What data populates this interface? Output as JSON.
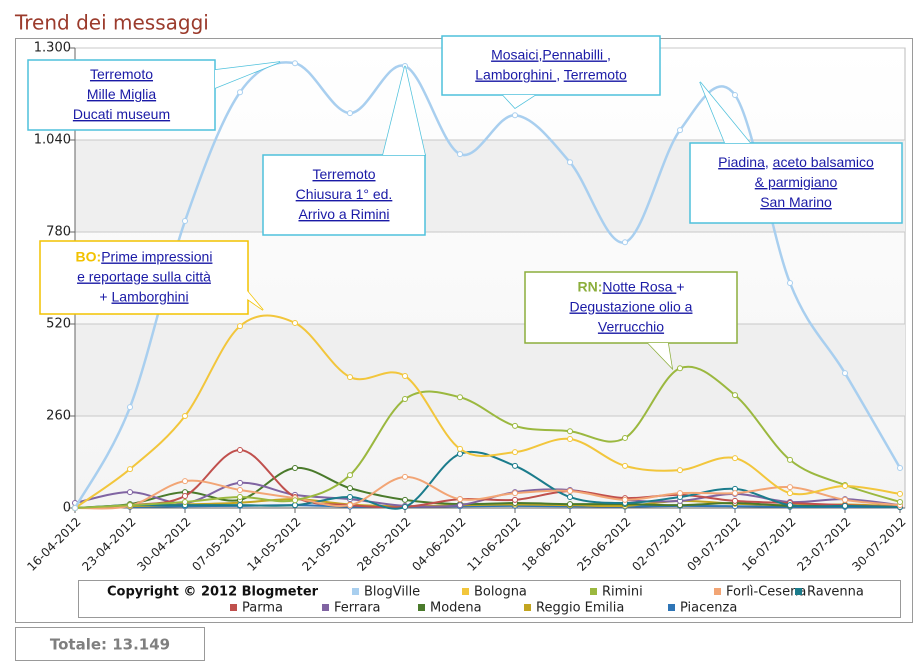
{
  "chart_data": {
    "type": "line",
    "title": "Trend dei messaggi",
    "categories": [
      "16-04-2012",
      "23-04-2012",
      "30-04-2012",
      "07-05-2012",
      "14-05-2012",
      "21-05-2012",
      "28-05-2012",
      "04-06-2012",
      "11-06-2012",
      "18-06-2012",
      "25-06-2012",
      "02-07-2012",
      "09-07-2012",
      "16-07-2012",
      "23-07-2012",
      "30-07-2012"
    ],
    "ylim": [
      0,
      1300
    ],
    "yticks": [
      0,
      260,
      520,
      780,
      {
        "value": 1040,
        "label": "1.040"
      },
      {
        "value": 1300,
        "label": "1.300"
      }
    ],
    "grid": true,
    "legend_title": "Copyright © 2012 Blogmeter",
    "series": [
      {
        "name": "BlogVille",
        "color": "#a9cfef",
        "values": [
          0,
          285,
          811,
          1175,
          1257,
          1116,
          1249,
          1000,
          1110,
          977,
          751,
          1068,
          1167,
          636,
          381,
          113
        ]
      },
      {
        "name": "Bologna",
        "color": "#f2c63c",
        "values": [
          0,
          110,
          260,
          514,
          523,
          370,
          373,
          167,
          158,
          195,
          119,
          107,
          141,
          42,
          62,
          40
        ]
      },
      {
        "name": "Rimini",
        "color": "#9bb83f",
        "values": [
          0,
          8,
          17,
          31,
          22,
          93,
          308,
          313,
          232,
          217,
          198,
          395,
          319,
          136,
          65,
          17
        ]
      },
      {
        "name": "Forlì-Cesena",
        "color": "#f2a575",
        "values": [
          0,
          6,
          76,
          51,
          28,
          8,
          88,
          25,
          42,
          48,
          23,
          42,
          42,
          59,
          23,
          8
        ]
      },
      {
        "name": "Ravenna",
        "color": "#1b7c8c",
        "values": [
          0,
          8,
          8,
          8,
          8,
          31,
          3,
          153,
          119,
          31,
          14,
          31,
          54,
          8,
          6,
          3
        ]
      },
      {
        "name": "Parma",
        "color": "#c0504d",
        "values": [
          0,
          8,
          34,
          164,
          31,
          8,
          3,
          25,
          23,
          48,
          28,
          37,
          20,
          14,
          8,
          3
        ]
      },
      {
        "name": "Ferrara",
        "color": "#8064a2",
        "values": [
          14,
          45,
          14,
          71,
          37,
          25,
          6,
          8,
          45,
          51,
          23,
          20,
          40,
          17,
          25,
          8
        ]
      },
      {
        "name": "Modena",
        "color": "#4a7a2b",
        "values": [
          0,
          11,
          45,
          23,
          113,
          56,
          23,
          11,
          14,
          11,
          11,
          8,
          14,
          6,
          6,
          3
        ]
      },
      {
        "name": "Reggio Emilia",
        "color": "#c3a520",
        "values": [
          0,
          5,
          10,
          15,
          25,
          10,
          5,
          8,
          10,
          8,
          6,
          20,
          12,
          8,
          10,
          5
        ]
      },
      {
        "name": "Piacenza",
        "color": "#2e75b6",
        "values": [
          0,
          3,
          5,
          6,
          8,
          4,
          3,
          5,
          6,
          5,
          4,
          6,
          5,
          3,
          3,
          2
        ]
      }
    ],
    "annotations": [
      {
        "color": "#4fc1dc",
        "lines": [
          [
            {
              "text": "Terremoto",
              "link": true
            }
          ],
          [
            {
              "text": "Mille Miglia",
              "link": true
            }
          ],
          [
            {
              "text": "Ducati museum",
              "link": true
            }
          ]
        ]
      },
      {
        "color": "#4fc1dc",
        "lines": [
          [
            {
              "text": "Terremoto",
              "link": true
            }
          ],
          [
            {
              "text": "Chiusura 1° ed.",
              "link": true
            }
          ],
          [
            {
              "text": "Arrivo a Rimini",
              "link": true
            }
          ]
        ]
      },
      {
        "color": "#4fc1dc",
        "lines": [
          [
            {
              "text": "Mosaici",
              "link": true
            },
            {
              "text": ",",
              "link": false
            },
            {
              "text": "Pennabilli ",
              "link": true
            },
            {
              "text": ",",
              "link": false
            }
          ],
          [
            {
              "text": "Lamborghini ",
              "link": true
            },
            {
              "text": ", ",
              "link": false
            },
            {
              "text": "Terremoto",
              "link": true
            }
          ]
        ]
      },
      {
        "color": "#4fc1dc",
        "lines": [
          [
            {
              "text": "Piadina",
              "link": true
            },
            {
              "text": ", ",
              "link": false
            },
            {
              "text": "aceto balsamico",
              "link": true
            }
          ],
          [
            {
              "text": "& parmigiano",
              "link": true
            }
          ],
          [
            {
              "text": "San Marino",
              "link": true
            }
          ]
        ]
      },
      {
        "color": "#f2c200",
        "prefix": "BO:",
        "lines": [
          [
            {
              "text": "Prime impressioni",
              "link": true
            }
          ],
          [
            {
              "text": "e reportage  sulla città",
              "link": true
            }
          ],
          [
            {
              "text": "+ ",
              "link": false
            },
            {
              "text": "Lamborghini",
              "link": true
            }
          ]
        ]
      },
      {
        "color": "#8cae3c",
        "prefix": "RN:",
        "lines": [
          [
            {
              "text": "Notte Rosa ",
              "link": true
            },
            {
              "text": "+",
              "link": false
            }
          ],
          [
            {
              "text": "Degustazione olio a",
              "link": true
            }
          ],
          [
            {
              "text": "Verrucchio",
              "link": true
            }
          ]
        ]
      }
    ]
  },
  "total_label": "Totale: 13.149"
}
